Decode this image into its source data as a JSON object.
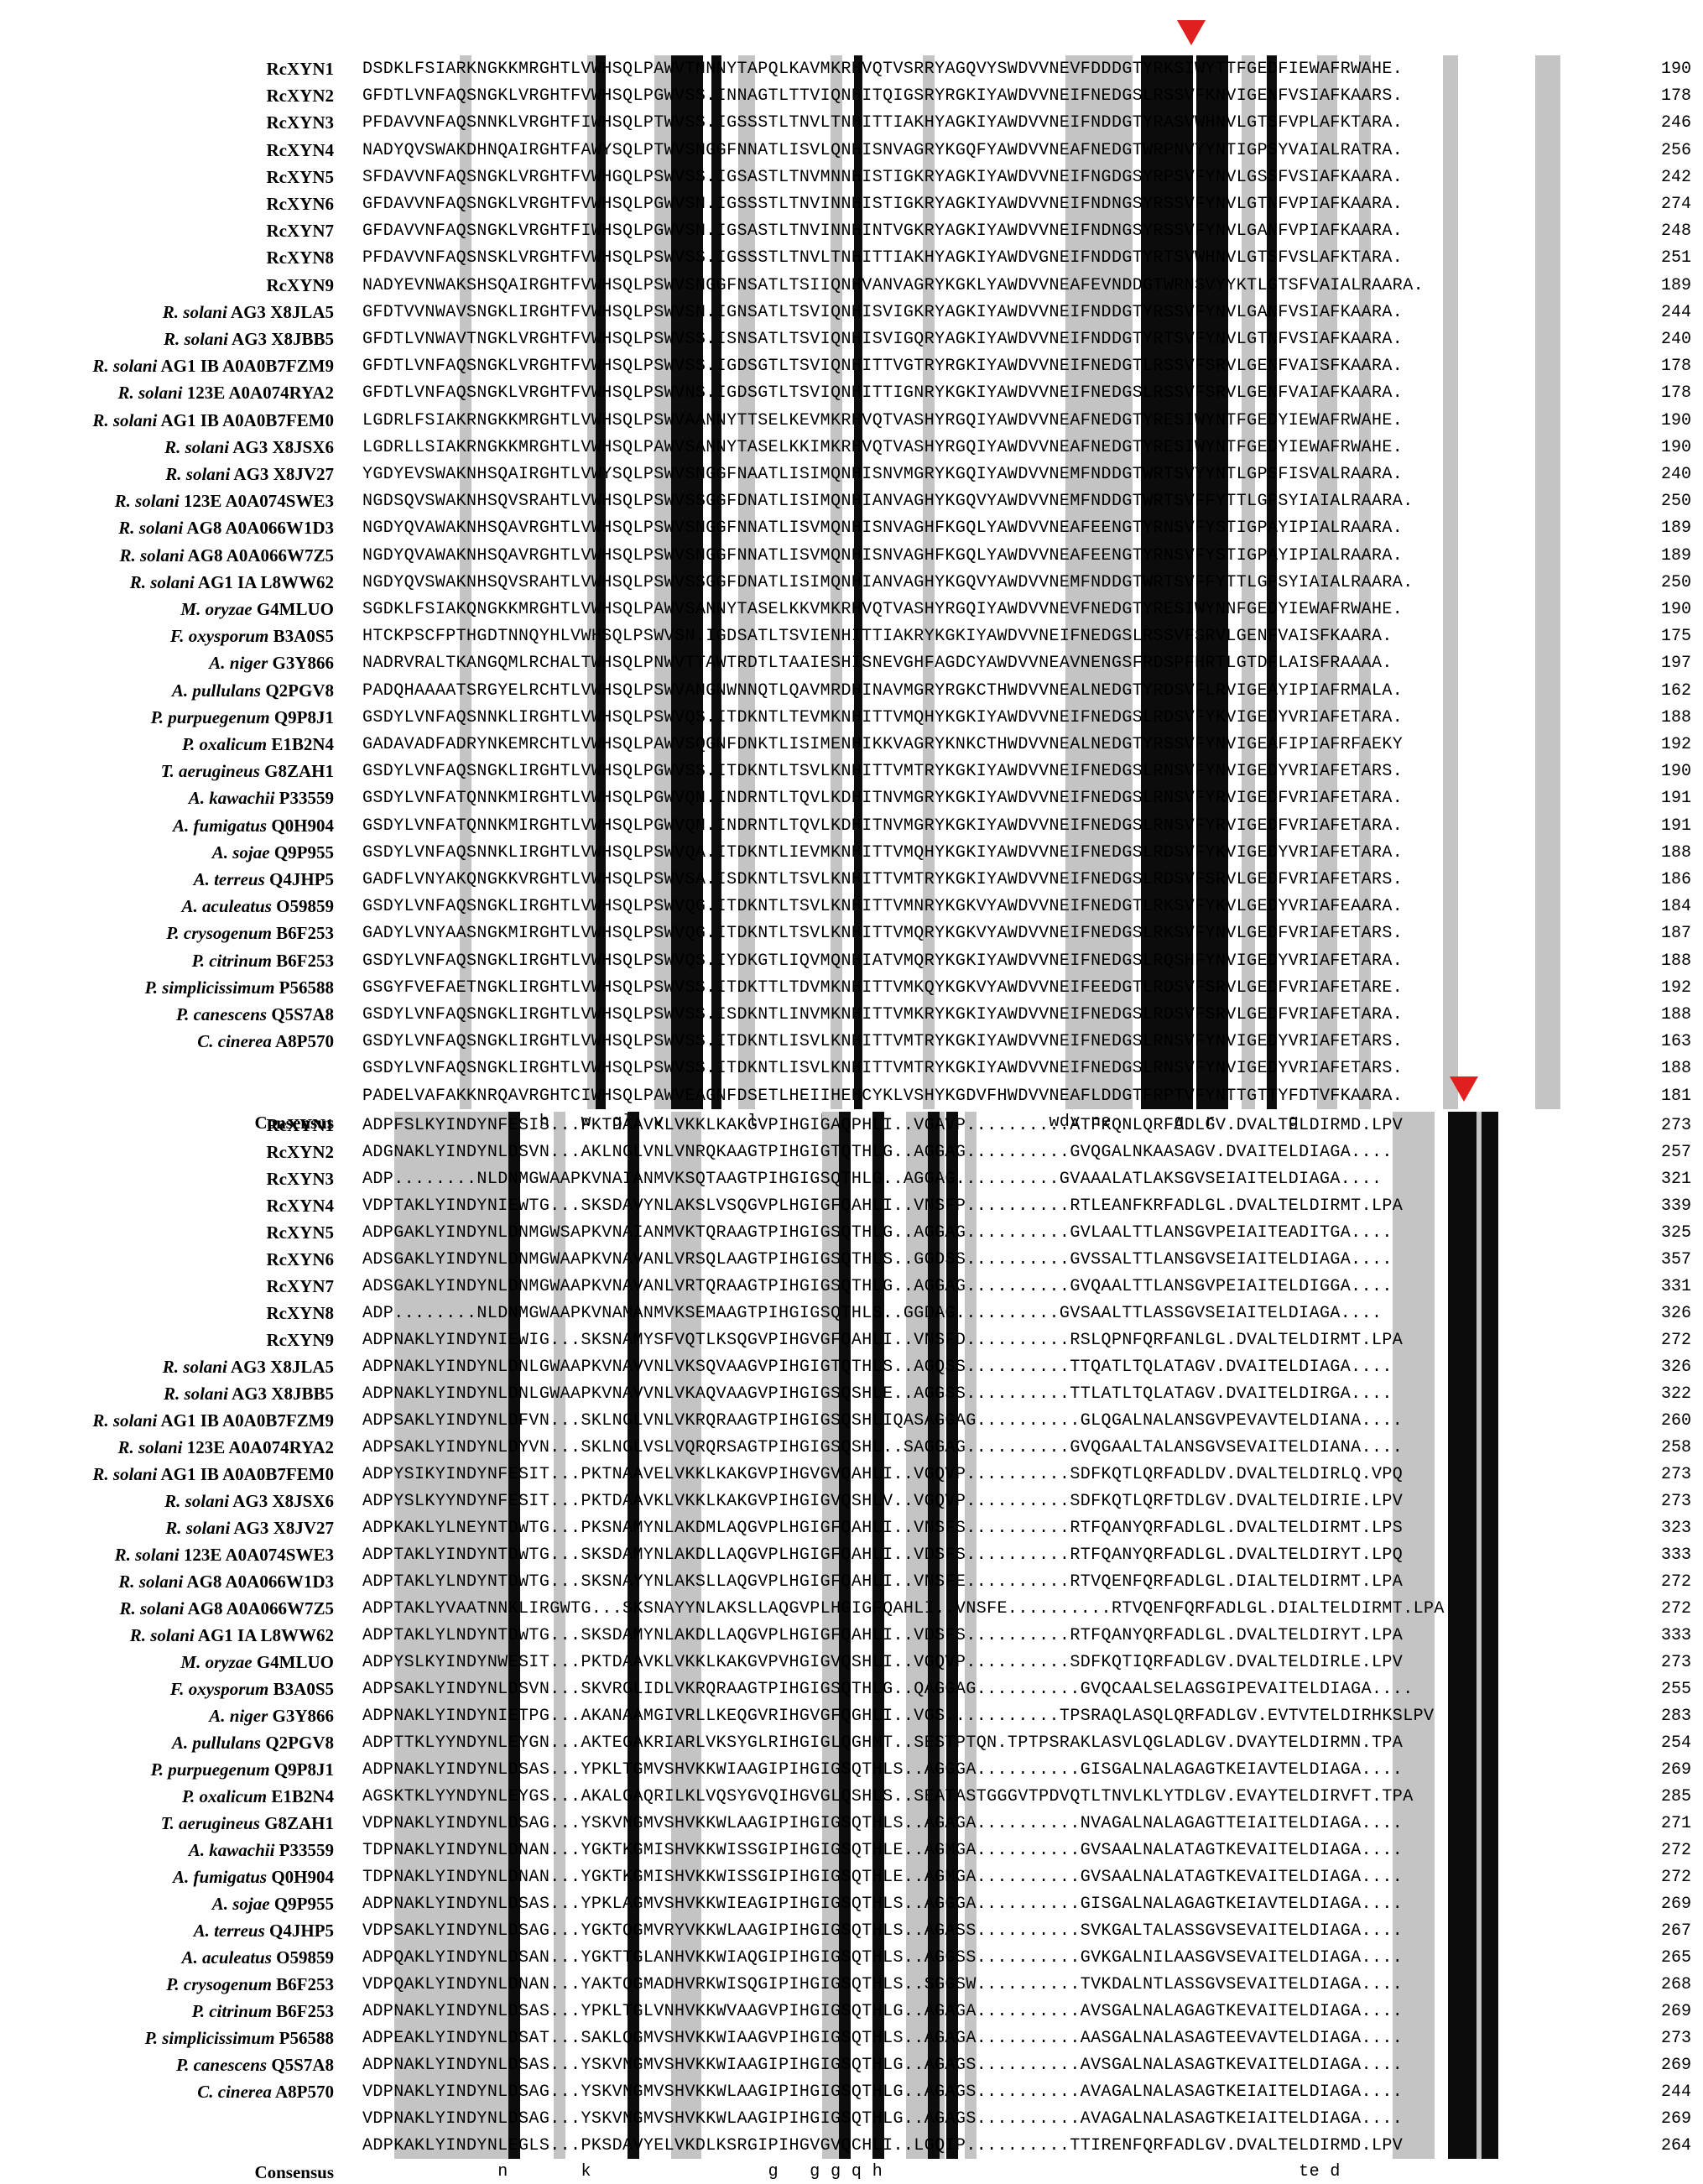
{
  "block1": {
    "rows": [
      {
        "name": "RcXYN1",
        "italic": "",
        "suffix": "",
        "seq": "DSDKLFSIARKNGKKMRGHTLVWHSQLPAWVTNNNYTAPQLKAVMKRHVQTVSRRYAGQVYSWDVVNEVFDDDGTYRKSIWYTTFGEDFIEWAFRWAHE.",
        "num": "190"
      },
      {
        "name": "RcXYN2",
        "italic": "",
        "suffix": "",
        "seq": "GFDTLVNFAQSNGKLVRGHTFVWHSQLPGWVSS.INNAGTLTTVIQNHITQIGSRYRGKIYAWDVVNEIFNEDGSLRSSVFKNVIGENFVSIAFKAARS.",
        "num": "178"
      },
      {
        "name": "RcXYN3",
        "italic": "",
        "suffix": "",
        "seq": "PFDAVVNFAQSNNKLVRGHTFIWHSQLPTWVSS.IGSSSTLTNVLTNHITTIAKHYAGKIYAWDVVNEIFNDDGTYRASVWHNVLGTSFVPLAFKTARA.",
        "num": "246"
      },
      {
        "name": "RcXYN4",
        "italic": "",
        "suffix": "",
        "seq": "NADYQVSWAKDHNQAIRGHTFAWYSQLPTWVSNGGFNNATLISVLQNHISNVAGRYKGQFYAWDVVNEAFNEDGTWRPNVYYNTIGPSYVAIALRATRA.",
        "num": "256"
      },
      {
        "name": "RcXYN5",
        "italic": "",
        "suffix": "",
        "seq": "SFDAVVNFAQSNGKLVRGHTFVWHGQLPSWVSS.IGSASTLTNVMNNHISTIGKRYAGKIYAWDVVNEIFNGDGSYRPSVFYNVLGSSFVSIAFKAARA.",
        "num": "242"
      },
      {
        "name": "RcXYN6",
        "italic": "",
        "suffix": "",
        "seq": "GFDAVVNFAQSNGKLVRGHTFVWHSQLPGWVSN.IGSSSTLTNVINNHISTIGKRYAGKIYAWDVVNEIFNDNGSYRSSVFYNVLGTNFVPIAFKAARA.",
        "num": "274"
      },
      {
        "name": "RcXYN7",
        "italic": "",
        "suffix": "",
        "seq": "GFDAVVNFAQSNGKLVRGHTFIWHSQLPGWVSN.IGSASTLTNVINNHINTVGKRYAGKIYAWDVVNEIFNDNGSYRSSVFYNVLGANFVPIAFKAARA.",
        "num": "248"
      },
      {
        "name": "RcXYN8",
        "italic": "",
        "suffix": "",
        "seq": "PFDAVVNFAQSNSKLVRGHTFVWHSQLPSWVSS.IGSSSTLTNVLTNHITTIAKHYAGKIYAWDVGNEIFNDDGTYRTSVWHNVLGTSFVSLAFKTARA.",
        "num": "251"
      },
      {
        "name": "RcXYN9",
        "italic": "",
        "suffix": "",
        "seq": "NADYEVNWAKSHSQAIRGHTFVWHSQLPSWVSNGGFNSATLTSIIQNHVANVAGRYKGKLYAWDVVNEAFEVNDDGTWRNSVYYKTLGTSFVAIALRAARA.",
        "num": "189"
      },
      {
        "name": "",
        "italic": "R. solani",
        "suffix": " AG3 X8JLA5",
        "seq": "GFDTVVNWAVSNGKLIRGHTFVWHSQLPSWVSN.IGNSATLTSVIQNHISVIGKRYAGKIYAWDVVNEIFNDDGTYRSSVFYNVLGANFVSIAFKAARA.",
        "num": "244"
      },
      {
        "name": "",
        "italic": "R. solani",
        "suffix": " AG3 X8JBB5",
        "seq": "GFDTLVNWAVTNGKLVRGHTFVWHSQLPSWVSS.ISNSATLTSVIQNHISVIGQRYAGKIYAWDVVNEIFNDDGTYRTSVFYNVLGTNFVSIAFKAARA.",
        "num": "240"
      },
      {
        "name": "",
        "italic": "R. solani",
        "suffix": " AG1 IB  A0A0B7FZM9",
        "seq": "GFDTLVNFAQSNGKLVRGHTFVWHSQLPSWVSS.IGDSGTLTSVIQNHITTVGTRYRGKIYAWDVVNEIFNEDGTLRSSVFSRVLGENFVAISFKAARA.",
        "num": "178"
      },
      {
        "name": "",
        "italic": "R. solani",
        "suffix": " 123E A0A074RYA2",
        "seq": "GFDTLVNFAQSNGKLVRGHTFVWHSQLPSWVNS.IGDSGTLTSVIQNHITTIGNRYKGKIYAWDVVNEIFNEDGSLRSSVFSRVLGENFVAIAFKAARA.",
        "num": "178"
      },
      {
        "name": "",
        "italic": "R. solani",
        "suffix": " AG1 IB  A0A0B7FEM0",
        "seq": "LGDRLFSIAKRNGKKMRGHTLVWHSQLPSWVAANNYTTSELKEVMKRHVQTVASHYRGQIYAWDVVNEAFNEDGTYRESIWYNTFGEDYIEWAFRWAHE.",
        "num": "190"
      },
      {
        "name": "",
        "italic": "R. solani",
        "suffix": " AG3 X8JSX6",
        "seq": "LGDRLLSIAKRNGKKMRGHTLVWHSQLPAWVSANNYTASELKKIMKRHVQTVASHYRGQIYAWDVVNEAFNEDGTYRESIWYNTFGEDYIEWAFRWAHE.",
        "num": "190"
      },
      {
        "name": "",
        "italic": "R. solani",
        "suffix": " AG3 X8JV27",
        "seq": "YGDYEVSWAKNHSQAIRGHTLVWYSQLPSWVSNGGFNAATLISIMQNHISNVMGRYKGQIYAWDVVNEMFNDDGTWRTSVYYNTLGPSFISVALRAARA.",
        "num": "240"
      },
      {
        "name": "",
        "italic": "R. solani",
        "suffix": " 123E A0A074SWE3",
        "seq": "NGDSQVSWAKNHSQVSRAHTLVWHSQLPSWVSSGGFDNATLISIMQNHIANVAGHYKGQVYAWDVVNEMFNDDGTWRTSVFFYTTLGPSYIAIALRAARA.",
        "num": "250"
      },
      {
        "name": "",
        "italic": "R. solani",
        "suffix": " AG8 A0A066W1D3",
        "seq": "NGDYQVAWAKNHSQAVRGHTLVWHSQLPSWVSNGGFNNATLISVMQNHISNVAGHFKGQLYAWDVVNEAFEENGTYRNSVFYSTIGPAYIPIALRAARA.",
        "num": "189"
      },
      {
        "name": "",
        "italic": "R. solani",
        "suffix": " AG8 A0A066W7Z5",
        "seq": "NGDYQVAWAKNHSQAVRGHTLVWHSQLPSWVSNGGFNNATLISVMQNHISNVAGHFKGQLYAWDVVNEAFEENGTYRNSVFYSTIGPAYIPIALRAARA.",
        "num": "189"
      },
      {
        "name": "",
        "italic": "R. solani",
        "suffix": " AG1 IA L8WW62",
        "seq": "NGDYQVSWAKNHSQVSRAHTLVWHSQLPSWVSSGGFDNATLISIMQNHIANVAGHYKGQVYAWDVVNEMFNDDGTWRTSVFFYTTLGPSYIAIALRAARA.",
        "num": "250"
      },
      {
        "name": "",
        "italic": "M. oryzae",
        "suffix": " G4MLUO",
        "seq": "SGDKLFSIAKQNGKKMRGHTLVWHSQLPAWVSANNYTASELKKVMKRHVQTVASHYRGQIYAWDVVNEVFNEDGTYRESIWYNNFGEDYIEWAFRWAHE.",
        "num": "190"
      },
      {
        "name": "",
        "italic": "F. oxysporum",
        "suffix": " B3A0S5",
        "seq": "HTCKPSCFPTHGDTNNQYHLVWHSQLPSWVSN.IGDSATLTSVIENHITTIAKRYKGKIYAWDVVNEIFNEDGSLRSSVFSRVLGENFVAISFKAARA.",
        "num": "175"
      },
      {
        "name": "",
        "italic": "A. niger",
        "suffix": " G3Y866",
        "seq": "NADRVRALTKANGQMLRCHALTWHSQLPNWVTTAWTRDTLTAAIESHISNEVGHFAGDCYAWDVVNEAVNENGSFRDSPFHRTLGTDFLAISFRAAAA.",
        "num": "197"
      },
      {
        "name": "",
        "italic": "A. pullulans",
        "suffix": " Q2PGV8",
        "seq": "PADQHAAAATSRGYELRCHTLVWHSQLPSWVANGNWNNQTLQAVMRDHINAVMGRYRGKCTHWDVVNEALNEDGTYRDSVFLRVIGEAYIPIAFRMALA.",
        "num": "162"
      },
      {
        "name": "",
        "italic": "P. purpuegenum",
        "suffix": " Q9P8J1",
        "seq": "GSDYLVNFAQSNNKLIRGHTLVWHSQLPSWVQS.ITDKNTLTEVMKNHITTVMQHYKGKIYAWDVVNEIFNEDGSLRDSVFYKVIGEDYVRIAFETARA.",
        "num": "188"
      },
      {
        "name": "",
        "italic": "P. oxalicum",
        "suffix": " E1B2N4",
        "seq": "GADAVADFADRYNKEMRCHTLVWHSQLPAWVSQGNFDNKTLISIMENHIKKVAGRYKNKCTHWDVVNEALNEDGTYRSSVFYNVIGEAFIPIAFRFAEKY",
        "num": "192"
      },
      {
        "name": "",
        "italic": "T. aerugineus",
        "suffix": " G8ZAH1",
        "seq": "GSDYLVNFAQSNGKLIRGHTLVWHSQLPGWVSS.ITDKNTLTSVLKNHITTVMTRYKGKIYAWDVVNEIFNEDGSLRNSVFYNVIGEDYVRIAFETARS.",
        "num": "190"
      },
      {
        "name": "",
        "italic": "A. kawachii",
        "suffix": " P33559",
        "seq": "GSDYLVNFATQNNKMIRGHTLVWHSQLPGWVQN.INDRNTLTQVLKDHITNVMGRYKGKIYAWDVVNEIFNEDGSLRNSVFYRVIGEDFVRIAFETARA.",
        "num": "191"
      },
      {
        "name": "",
        "italic": "A. fumigatus",
        "suffix": " Q0H904",
        "seq": "GSDYLVNFATQNNKMIRGHTLVWHSQLPGWVQN.INDRNTLTQVLKDHITNVMGRYKGKIYAWDVVNEIFNEDGSLRNSVFYRVIGEDFVRIAFETARA.",
        "num": "191"
      },
      {
        "name": "",
        "italic": "A. sojae",
        "suffix": " Q9P955",
        "seq": "GSDYLVNFAQSNNKLIRGHTLVWHSQLPSWVQA.ITDKNTLIEVMKNHITTVMQHYKGKIYAWDVVNEIFNEDGSLRDSVFYKVIGEDYVRIAFETARA.",
        "num": "188"
      },
      {
        "name": "",
        "italic": "A. terreus",
        "suffix": " Q4JHP5",
        "seq": "GADFLVNYAKQNGKKVRGHTLVWHSQLPSWVSA.ISDKNTLTSVLKNHITTVMTRYKGKIYAWDVVNEIFNEDGSLRDSVFSRVLGEDFVRIAFETARS.",
        "num": "186"
      },
      {
        "name": "",
        "italic": "A. aculeatus",
        "suffix": " O59859",
        "seq": "GSDYLVNFAQSNGKLIRGHTLVWHSQLPSWVQG.ITDKNTLTSVLKNHITTVMNRYKGKVYAWDVVNEIFNEDGTLRKSVFYKVLGEDYVRIAFEAARA.",
        "num": "184"
      },
      {
        "name": "",
        "italic": "P. crysogenum",
        "suffix": " B6F253",
        "seq": "GADYLVNYAASNGKMIRGHTLVWHSQLPSWVQG.ITDKNTLTSVLKNHITTVMQRYKGKVYAWDVVNEIFNEDGSLRKSVFYNVLGEDFVRIAFETARS.",
        "num": "187"
      },
      {
        "name": "",
        "italic": "P. citrinum",
        "suffix": " B6F253",
        "seq": "GSDYLVNFAQSNGKLIRGHTLVWHSQLPSWVQS.IYDKGTLIQVMQNHIATVMQRYKGKIYAWDVVNEIFNEDGSLRQSHFYNVIGEDYVRIAFETARA.",
        "num": "188"
      },
      {
        "name": "",
        "italic": "P. simplicissimum",
        "suffix": " P56588",
        "seq": "GSGYFVEFAETNGKLIRGHTLVWHSQLPSWVSS.ITDKTTLTDVMKNHITTVMKQYKGKVYAWDVVNEIFEEDGTLRDSVFSRVLGEDFVRIAFETARE.",
        "num": "192"
      },
      {
        "name": "",
        "italic": "P. canescens",
        "suffix": " Q5S7A8",
        "seq": "GSDYLVNFAQSNGKLIRGHTLVWHSQLPSWVSS.ISDKNTLINVMKNHITTVMKRYKGKIYAWDVVNEIFNEDGSLRDSVFSRVLGEDFVRIAFETARA.",
        "num": "188"
      },
      {
        "name": "",
        "italic": "C. cinerea",
        "suffix": " A8P570",
        "seq": "GSDYLVNFAQSNGKLIRGHTLVWHSQLPSWVSS.ITDKNTLISVLKNHITTVMTRYKGKIYAWDVVNEIFNEDGSLRNSVFYNVIGEDYVRIAFETARS.",
        "num": "163"
      },
      {
        "name": "",
        "italic": "",
        "suffix": "",
        "seq": "GSDYLVNFAQSNGKLIRGHTLVWHSQLPSWVSS.ITDKNTLISVLKNHITTVMTRYKGKIYAWDVVNEIFNEDGSLRNSVFYNVIGEDYVRIAFETARS.",
        "num": "188"
      },
      {
        "name": "",
        "italic": "",
        "suffix": "",
        "seq": "PADELVAFAKKNRQAVRGHTCIWHSQLPAWVEAGNFDSETLHEIIHEHCYKLVSHYKGDVFHWDVVNEAFLDDGTFRPTVFYNTTGTTYFDTVFKAARA.",
        "num": "181"
      }
    ],
    "consensus": "                 h   w  ql  v        l      h                     wdv ne      g  r       g",
    "consensus_label": "Consensus"
  },
  "block2": {
    "rows": [
      {
        "name": "RcXYN1",
        "italic": "",
        "suffix": "",
        "seq": "ADPFSLKYINDYNFESIS...PKTDAAVKLVKKLKAKGVPIHGIGAQPHLI..VGAVP..........ATFKQNLQRFADLGV.DVALTELDIRMD.LPV",
        "num": "273"
      },
      {
        "name": "RcXYN2",
        "italic": "",
        "suffix": "",
        "seq": "ADGNAKLYINDYNLDSVN...AKLNGLVNLVNRQKAAGTPIHGIGTQTHLG..AGGAG..........GVQGALNKAASAGV.DVAITELDIAGA....",
        "num": "257"
      },
      {
        "name": "RcXYN3",
        "italic": "",
        "suffix": "",
        "seq": "ADP........NLDNMGWAAPKVNAIANMVKSQTAAGTPIHGIGSQTHLG..AGGAG..........GVAAALATLAKSGVSEIAITELDIAGA....",
        "num": "321"
      },
      {
        "name": "RcXYN4",
        "italic": "",
        "suffix": "",
        "seq": "VDPTAKLYINDYNIEWTG...SKSDAVYNLAKSLVSQGVPLHGIGFQAHLI..VNSFP..........RTLEANFKRFADLGL.DVALTELDIRMT.LPA",
        "num": "339"
      },
      {
        "name": "RcXYN5",
        "italic": "",
        "suffix": "",
        "seq": "ADPGAKLYINDYNLDNMGWSAPKVNAIANMVKTQRAAGTPIHGIGSQTHLG..AGGAG..........GVLAALTTLANSGVPEIAITEADITGA....",
        "num": "325"
      },
      {
        "name": "RcXYN6",
        "italic": "",
        "suffix": "",
        "seq": "ADSGAKLYINDYNLDNMGWAAPKVNAVANLVRSQLAAGTPIHGIGSQTHLS..GGDSS..........GVSSALTTLANSGVSEIAITELDIAGA....",
        "num": "357"
      },
      {
        "name": "RcXYN7",
        "italic": "",
        "suffix": "",
        "seq": "ADSGAKLYINDYNLDNMGWAAPKVNAVANLVRTQRAAGTPIHGIGSQTHLG..AGGAG..........GVQAALTTLANSGVPEIAITELDIGGA....",
        "num": "331"
      },
      {
        "name": "RcXYN8",
        "italic": "",
        "suffix": "",
        "seq": "ADP........NLDNMGWAAPKVNAMANMVKSEMAAGTPIHGIGSQTHLS..GGDAG..........GVSAALTTLASSGVSEIAITELDIAGA....",
        "num": "326"
      },
      {
        "name": "RcXYN9",
        "italic": "",
        "suffix": "",
        "seq": "ADPNAKLYINDYNIEWIG...SKSNAMYSFVQTLKSQGVPIHGVGFQAHLI..VNSFD..........RSLQPNFQRFANLGL.DVALTELDIRMT.LPA",
        "num": "272"
      },
      {
        "name": "",
        "italic": "R. solani",
        "suffix": " AG3 X8JLA5",
        "seq": "ADPNAKLYINDYNLDNLGWAAPKVNAVVNLVKSQVAAGVPIHGIGTQTHLS..AGQSS..........TTQATLTQLATAGV.DVAITELDIAGA....",
        "num": "326"
      },
      {
        "name": "",
        "italic": "R. solani",
        "suffix": " AG3 X8JBB5",
        "seq": "ADPNAKLYINDYNLDNLGWAAPKVNAVVNLVKAQVAAGVPIHGIGSQSHLE..AGGSS..........TTLATLTQLATAGV.DVAITELDIRGA....",
        "num": "322"
      },
      {
        "name": "",
        "italic": "R. solani",
        "suffix": " AG1 IB  A0A0B7FZM9",
        "seq": "ADPSAKLYINDYNLDFVN...SKLNGLVNLVKRQRAAGTPIHGIGSQSHLIQASAGGAG..........GLQGALNALANSGVPEVAVTELDIANA....",
        "num": "260"
      },
      {
        "name": "",
        "italic": "R. solani",
        "suffix": " 123E A0A074RYA2",
        "seq": "ADPSAKLYINDYNLDYVN...SKLNGLVSLVQRQRSAGTPIHGIGSQSHL..SAGGAG..........GVQGAALTALANSGVSEVAITELDIANA....",
        "num": "258"
      },
      {
        "name": "",
        "italic": "R. solani",
        "suffix": " AG1 IB  A0A0B7FEM0",
        "seq": "ADPYSIKYINDYNFESIT...PKTNAAVELVKKLKAKGVPIHGVGVQAHLI..VGQVP..........SDFKQTLQRFADLDV.DVALTELDIRLQ.VPQ",
        "num": "273"
      },
      {
        "name": "",
        "italic": "R. solani",
        "suffix": " AG3 X8JSX6",
        "seq": "ADPYSLKYYNDYNFESIT...PKTDAAVKLVKKLKAKGVPIHGIGVQSHLV..VGQVP..........SDFKQTLQRFTDLGV.DVALTELDIRIE.LPV",
        "num": "273"
      },
      {
        "name": "",
        "italic": "R. solani",
        "suffix": " AG3 X8JV27",
        "seq": "ADPKAKLYLNEYNTDWTG...PKSNAMYNLAKDMLAQGVPLHGIGFQAHLI..VNSFS..........RTFQANYQRFADLGL.DVALTELDIRMT.LPS",
        "num": "323"
      },
      {
        "name": "",
        "italic": "R. solani",
        "suffix": " 123E A0A074SWE3",
        "seq": "ADPTAKLYINDYNTDWTG...SKSDAMYNLAKDLLAQGVPLHGIGFQAHLI..VDSFS..........RTFQANYQRFADLGL.DVALTELDIRYT.LPQ",
        "num": "333"
      },
      {
        "name": "",
        "italic": "R. solani",
        "suffix": " AG8 A0A066W1D3",
        "seq": "ADPTAKLYLNDYNTDWTG...SKSNAYYNLAKSLLAQGVPLHGIGFQAHLI..VNSFE..........RTVQENFQRFADLGL.DIALTELDIRMT.LPA",
        "num": "272"
      },
      {
        "name": "",
        "italic": "R. solani",
        "suffix": " AG8 A0A066W7Z5",
        "seq": "ADPTAKLYVAATNNKLIRGWTG...SKSNAYYNLAKSLLAQGVPLHGIGFQAHLI..VNSFE..........RTVQENFQRFADLGL.DIALTELDIRMT.LPA",
        "num": "272"
      },
      {
        "name": "",
        "italic": "R. solani",
        "suffix": " AG1 IA L8WW62",
        "seq": "ADPTAKLYLNDYNTDWTG...SKSDAMYNLAKDLLAQGVPLHGIGFQAHLI..VDSFS..........RTFQANYQRFADLGL.DVALTELDIRYT.LPA",
        "num": "333"
      },
      {
        "name": "",
        "italic": "M. oryzae",
        "suffix": " G4MLUO",
        "seq": "ADPYSLKYINDYNWESIT...PKTDAAVKLVKKLKAKGVPVHGIGVQSHLI..VGQVP..........SDFKQTIQRFADLGV.DVALTELDIRLE.LPV",
        "num": "273"
      },
      {
        "name": "",
        "italic": "F. oxysporum",
        "suffix": " B3A0S5",
        "seq": "ADPSAKLYINDYNLDSVN...SKVRGLIDLVKRQRAAGTPIHGIGSQTHLG..QAGGAG..........GVQCAALSELAGSGIPEVAITELDIAGA....",
        "num": "255"
      },
      {
        "name": "",
        "italic": "A. niger",
        "suffix": " G3Y866",
        "seq": "ADPNAKLYINDYNIETPG...AKANAAMGIVRLLKEQGVRIHGVGFQGHLI..VGS...........TPSRAQLASQLQRFADLGV.EVTVTELDIRHKSLPV",
        "num": "283"
      },
      {
        "name": "",
        "italic": "A. pullulans",
        "suffix": " Q2PGV8",
        "seq": "ADPTTKLYYNDYNLEYGN...AKTEGAKRIARLVKSYGLRIHGIGLQGHMT..SESTPTQN.TPTPSRAKLASVLQGLADLGV.DVAYTELDIRMN.TPA",
        "num": "254"
      },
      {
        "name": "",
        "italic": "P. purpuegenum",
        "suffix": " Q9P8J1",
        "seq": "ADPNAKLYINDYNLDSAS...YPKLTGMVSHVKKWIAAGIPIHGIGSQTHLS..AGGGA..........GISGALNALAGAGTKEIAVTELDIAGA....",
        "num": "269"
      },
      {
        "name": "",
        "italic": "P. oxalicum",
        "suffix": " E1B2N4",
        "seq": "AGSKTKLYYNDYNLEYGS...AKALGAQRILKLVQSYGVQIHGVGLQSHLS..SEATASTGGGVTPDVQTLTNVLKLYTDLGV.EVAYTELDIRVFT.TPA",
        "num": "285"
      },
      {
        "name": "",
        "italic": "T. aerugineus",
        "suffix": " G8ZAH1",
        "seq": "VDPNAKLYINDYNLDSAG...YSKVNGMVSHVKKWLAAGIPIHGIGSQTHLS..AGAGA..........NVAGALNALAGAGTTEIAITELDIAGA....",
        "num": "271"
      },
      {
        "name": "",
        "italic": "A. kawachii",
        "suffix": " P33559",
        "seq": "TDPNAKLYINDYNLDNAN...YGKTKGMISHVKKWISSGIPIHGIGSQTHLE..AGMGA..........GVSAALNALATAGTKEVAITELDIAGA....",
        "num": "272"
      },
      {
        "name": "",
        "italic": "A. fumigatus",
        "suffix": " Q0H904",
        "seq": "TDPNAKLYINDYNLDNAN...YGKTKGMISHVKKWISSGIPIHGIGSQTHLE..AGMGA..........GVSAALNALATAGTKEVAITELDIAGA....",
        "num": "272"
      },
      {
        "name": "",
        "italic": "A. sojae",
        "suffix": " Q9P955",
        "seq": "ADPNAKLYINDYNLDSAS...YPKLAGMVSHVKKWIEAGIPIHGIGSQTHLS..AGGGA..........GISGALNALAGAGTKEIAVTELDIAGA....",
        "num": "269"
      },
      {
        "name": "",
        "italic": "A. terreus",
        "suffix": " Q4JHP5",
        "seq": "VDPSAKLYINDYNLDSAG...YGKTQGMVRYVKKWLAAGIPIHGIGSQTHLS..AGASS..........SVKGALTALASSGVSEVAITELDIAGA....",
        "num": "267"
      },
      {
        "name": "",
        "italic": "A. aculeatus",
        "suffix": " O59859",
        "seq": "ADPQAKLYINDYNLDSAN...YGKTTGLANHVKKWIAQGIPIHGIGSQTHLS..AGGSS..........GVKGALNILAASGVSEVAITELDIAGA....",
        "num": "265"
      },
      {
        "name": "",
        "italic": "P. crysogenum",
        "suffix": " B6F253",
        "seq": "VDPQAKLYINDYNLDNAN...YAKTQGMADHVRKWISQGIPIHGIGSQTHLS..SGGSW..........TVKDALNTLASSGVSEVAITELDIAGA....",
        "num": "268"
      },
      {
        "name": "",
        "italic": "P. citrinum",
        "suffix": " B6F253",
        "seq": "ADPNAKLYINDYNLDSAS...YPKLTGLVNHVKKWVAAGVPIHGIGSQTHLG..AGAGA..........AVSGALNALAGAGTKEVAITELDIAGA....",
        "num": "269"
      },
      {
        "name": "",
        "italic": "P. simplicissimum",
        "suffix": " P56588",
        "seq": "ADPEAKLYINDYNLDSAT...SAKLQGMVSHVKKWIAAGVPIHGIGSQTHLS..AGAGA..........AASGALNALASAGTEEVAVTELDIAGA....",
        "num": "273"
      },
      {
        "name": "",
        "italic": "P. canescens",
        "suffix": " Q5S7A8",
        "seq": "ADPNAKLYINDYNLDSAS...YSKVNGMVSHVKKWIAAGIPIHGIGSQTHLG..AGAGS..........AVSGALNALASAGTKEVAITELDIAGA....",
        "num": "269"
      },
      {
        "name": "",
        "italic": "C. cinerea",
        "suffix": " A8P570",
        "seq": "VDPNAKLYINDYNLDSAG...YSKVNGMVSHVKKWLAAGIPIHGIGSQTHLG..AGAGS..........AVAGALNALASAGTKEIAITELDIAGA....",
        "num": "244"
      },
      {
        "name": "",
        "italic": "",
        "suffix": "",
        "seq": "VDPNAKLYINDYNLDSAG...YSKVNGMVSHVKKWLAAGIPIHGIGSQTHLG..AGAGS..........AVAGALNALASAGTKEIAITELDIAGA....",
        "num": "269"
      },
      {
        "name": "",
        "italic": "",
        "suffix": "",
        "seq": "ADPKAKLYINDYNLEGLS...PKSDAVYELVKDLKSRGIPIHGVGVQCHLI..LGQIP..........TTIRENFQRFADLGV.DVALTELDIRMD.LPV",
        "num": "264"
      }
    ],
    "consensus": "             n       k                 g   g g q h                                        te d",
    "consensus_label": "Consensus"
  }
}
